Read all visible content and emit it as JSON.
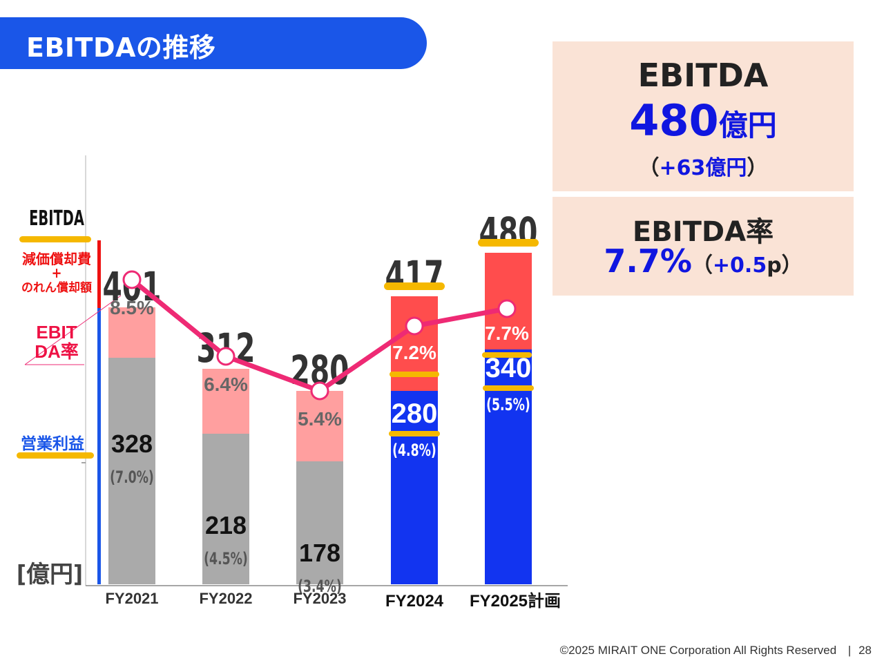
{
  "title": "EBITDAの推移",
  "unit_label": "[億円]",
  "left_labels": {
    "ebitda": "EBITDA",
    "depreciation_line1": "減価償却費",
    "depreciation_plus": "+",
    "depreciation_line2": "のれん償却額",
    "ebitda_rate_line1": "EBIT",
    "ebitda_rate_line2": "DA率",
    "operating_profit": "営業利益"
  },
  "summary": {
    "ebitda_label": "EBITDA",
    "ebitda_value": "480",
    "ebitda_unit": "億円",
    "ebitda_change_open": "（",
    "ebitda_change": "+63億円",
    "ebitda_change_close": "）",
    "rate_label": "EBITDA率",
    "rate_value": "7.7%",
    "rate_change_open": "（",
    "rate_change_num": "+0.5",
    "rate_change_unit": "p",
    "rate_change_close": "）"
  },
  "chart_data": {
    "type": "bar",
    "categories": [
      "FY2021",
      "FY2022",
      "FY2023",
      "FY2024",
      "FY2025計画"
    ],
    "series": [
      {
        "name": "営業利益",
        "values": [
          328,
          218,
          178,
          280,
          340
        ],
        "labels": [
          "(7.0%)",
          "(4.5%)",
          "(3.4%)",
          "(4.8%)",
          "(5.5%)"
        ]
      },
      {
        "name": "減価償却費+のれん償却額",
        "values": [
          73,
          94,
          102,
          137,
          140
        ]
      }
    ],
    "totals": [
      401,
      312,
      280,
      417,
      480
    ],
    "line": {
      "name": "EBITDA率",
      "values": [
        8.5,
        6.4,
        5.4,
        7.2,
        7.7
      ],
      "labels": [
        "8.5%",
        "6.4%",
        "5.4%",
        "7.2%",
        "7.7%"
      ]
    },
    "ylabel": "[億円]",
    "ylim": [
      0,
      500
    ],
    "colors": {
      "past_operating": "#aaaaaa",
      "past_depreciation": "#ff9f9f",
      "new_operating": "#1234f0",
      "new_depreciation": "#ff4d4d",
      "line": "#ee2a74",
      "highlight": "#f5b800"
    }
  },
  "footer": {
    "copyright": "©2025 MIRAIT ONE Corporation All Rights Reserved",
    "separator": "|",
    "page": "28"
  }
}
